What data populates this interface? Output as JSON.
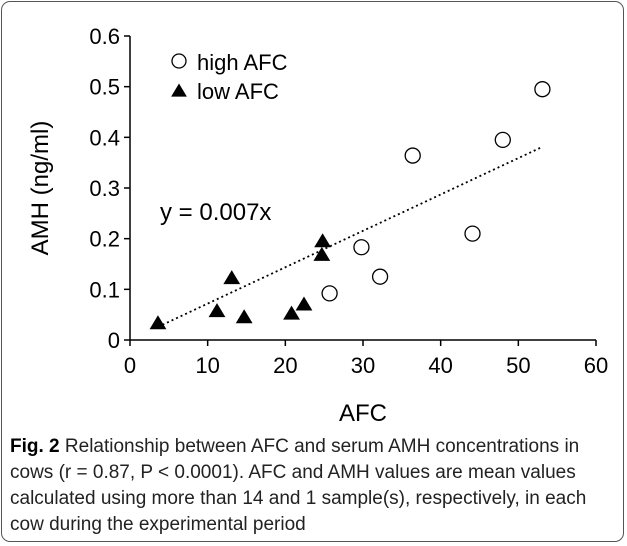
{
  "chart_data": {
    "type": "scatter",
    "xlabel": "AFC",
    "ylabel": "AMH (ng/ml)",
    "xlim": [
      0,
      60
    ],
    "ylim": [
      0,
      0.6
    ],
    "xticks": [
      "0",
      "10",
      "20",
      "30",
      "40",
      "50",
      "60"
    ],
    "yticks": [
      "0",
      "0.1",
      "0.2",
      "0.3",
      "0.4",
      "0.5",
      "0.6"
    ],
    "grid": false,
    "legend_position": "top-left",
    "series": [
      {
        "name": "high AFC",
        "marker": "open-circle",
        "x": [
          25.7,
          29.8,
          32.2,
          36.4,
          44.1,
          48.0,
          53.1
        ],
        "y": [
          0.092,
          0.183,
          0.125,
          0.364,
          0.21,
          0.395,
          0.495
        ]
      },
      {
        "name": "low AFC",
        "marker": "filled-triangle",
        "x": [
          3.6,
          11.2,
          13.1,
          14.7,
          20.8,
          22.4,
          24.7,
          24.8
        ],
        "y": [
          0.033,
          0.057,
          0.122,
          0.045,
          0.052,
          0.07,
          0.168,
          0.195
        ]
      }
    ],
    "trendline": {
      "label": "y = 0.007x",
      "slope": 0.00718,
      "x_range": [
        3.6,
        53.1
      ],
      "style": "dotted"
    }
  },
  "caption": {
    "lead": "Fig. 2",
    "text": " Relationship between AFC and serum AMH concentrations in cows (r = 0.87, P < 0.0001). AFC and AMH values are mean values calculated using more than 14 and 1 sample(s), respectively, in each cow during the experimental period"
  },
  "colors": {
    "marker": "#000000",
    "frame": "#555555",
    "caption_text": "#222222"
  }
}
